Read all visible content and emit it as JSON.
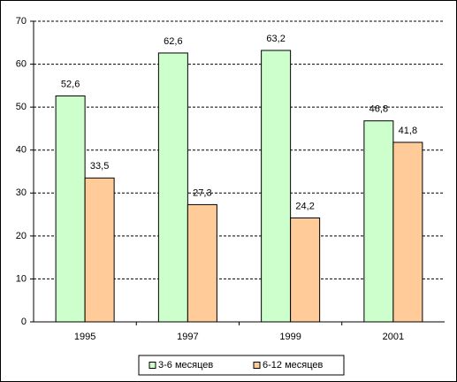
{
  "chart_data": {
    "type": "bar",
    "categories": [
      "1995",
      "1997",
      "1999",
      "2001"
    ],
    "series": [
      {
        "name": "3-6 месяцев",
        "color": "#ccffcc",
        "values": [
          52.6,
          62.6,
          63.2,
          46.8
        ],
        "value_labels": [
          "52,6",
          "62,6",
          "63,2",
          "46,8"
        ]
      },
      {
        "name": "6-12 месяцев",
        "color": "#ffcc99",
        "values": [
          33.5,
          27.3,
          24.2,
          41.8
        ],
        "value_labels": [
          "33,5",
          "27,3",
          "24,2",
          "41,8"
        ]
      }
    ],
    "ylim": [
      0,
      70
    ],
    "yticks": [
      0,
      10,
      20,
      30,
      40,
      50,
      60,
      70
    ],
    "grid": true,
    "legend": "bottom"
  }
}
